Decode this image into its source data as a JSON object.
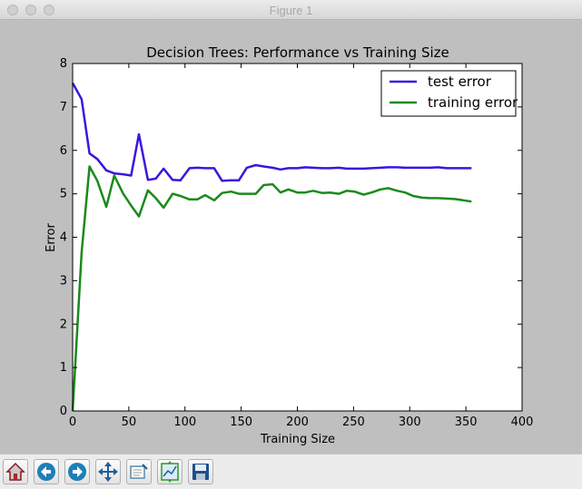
{
  "window": {
    "title": "Figure 1"
  },
  "chart_data": {
    "type": "line",
    "title": "Decision Trees: Performance vs Training Size",
    "xlabel": "Training Size",
    "ylabel": "Error",
    "xlim": [
      0,
      400
    ],
    "ylim": [
      0,
      8
    ],
    "xticks": [
      0,
      50,
      100,
      150,
      200,
      250,
      300,
      350,
      400
    ],
    "yticks": [
      0,
      1,
      2,
      3,
      4,
      5,
      6,
      7,
      8
    ],
    "legend_position": "top-right",
    "grid": false,
    "x": [
      0,
      8,
      15,
      22,
      30,
      37,
      45,
      52,
      59,
      67,
      74,
      81,
      89,
      96,
      104,
      111,
      118,
      126,
      133,
      141,
      148,
      155,
      163,
      170,
      178,
      185,
      192,
      200,
      207,
      214,
      222,
      229,
      237,
      244,
      251,
      259,
      266,
      274,
      281,
      289,
      296,
      303,
      311,
      318,
      325,
      333,
      340,
      348,
      355
    ],
    "series": [
      {
        "name": "test error",
        "color": "#3d14e0",
        "values": [
          7.55,
          7.18,
          5.93,
          5.8,
          5.54,
          5.47,
          5.45,
          5.42,
          6.37,
          5.32,
          5.35,
          5.58,
          5.32,
          5.31,
          5.59,
          5.6,
          5.59,
          5.59,
          5.3,
          5.31,
          5.31,
          5.6,
          5.66,
          5.63,
          5.6,
          5.56,
          5.59,
          5.59,
          5.61,
          5.6,
          5.59,
          5.59,
          5.6,
          5.58,
          5.58,
          5.58,
          5.59,
          5.6,
          5.61,
          5.61,
          5.6,
          5.6,
          5.6,
          5.6,
          5.61,
          5.59,
          5.59,
          5.59,
          5.59
        ]
      },
      {
        "name": "training error",
        "color": "#1a8a1a",
        "values": [
          0.0,
          3.65,
          5.63,
          5.3,
          4.7,
          5.42,
          5.0,
          4.73,
          4.48,
          5.08,
          4.9,
          4.68,
          5.0,
          4.95,
          4.87,
          4.87,
          4.97,
          4.85,
          5.02,
          5.05,
          5.0,
          5.0,
          5.0,
          5.2,
          5.22,
          5.03,
          5.1,
          5.03,
          5.03,
          5.07,
          5.02,
          5.03,
          5.0,
          5.07,
          5.05,
          4.98,
          5.03,
          5.1,
          5.13,
          5.07,
          5.03,
          4.95,
          4.91,
          4.9,
          4.9,
          4.89,
          4.88,
          4.85,
          4.82
        ]
      }
    ]
  },
  "toolbar": {
    "buttons": [
      {
        "name": "home-button",
        "icon": "home-icon"
      },
      {
        "name": "back-button",
        "icon": "back-arrow-icon"
      },
      {
        "name": "forward-button",
        "icon": "forward-arrow-icon"
      },
      {
        "name": "pan-button",
        "icon": "pan-move-icon"
      },
      {
        "name": "zoom-button",
        "icon": "zoom-rect-icon"
      },
      {
        "name": "subplots-button",
        "icon": "subplots-config-icon"
      },
      {
        "name": "save-button",
        "icon": "save-floppy-icon"
      }
    ]
  }
}
